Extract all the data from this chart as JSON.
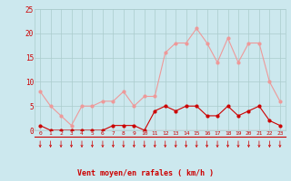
{
  "hours": [
    0,
    1,
    2,
    3,
    4,
    5,
    6,
    7,
    8,
    9,
    10,
    11,
    12,
    13,
    14,
    15,
    16,
    17,
    18,
    19,
    20,
    21,
    22,
    23
  ],
  "wind_avg": [
    1,
    0,
    0,
    0,
    0,
    0,
    0,
    1,
    1,
    1,
    0,
    4,
    5,
    4,
    5,
    5,
    3,
    3,
    5,
    3,
    4,
    5,
    2,
    1
  ],
  "wind_gust": [
    8,
    5,
    3,
    1,
    5,
    5,
    6,
    6,
    8,
    5,
    7,
    7,
    16,
    18,
    18,
    21,
    18,
    14,
    19,
    14,
    18,
    18,
    10,
    6
  ],
  "bg_color": "#cce8ee",
  "grid_color": "#aacccc",
  "line_avg_color": "#cc0000",
  "line_gust_color": "#ee9999",
  "xlabel": "Vent moyen/en rafales ( km/h )",
  "ylabel_ticks": [
    0,
    5,
    10,
    15,
    20,
    25
  ],
  "ylim": [
    0,
    25
  ],
  "xlim": [
    0,
    23
  ]
}
